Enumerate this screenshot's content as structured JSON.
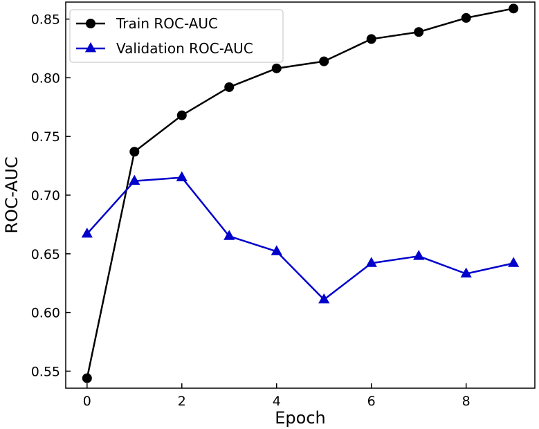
{
  "chart_data": {
    "type": "line",
    "title": "",
    "xlabel": "Epoch",
    "ylabel": "ROC-AUC",
    "x": [
      0,
      1,
      2,
      3,
      4,
      5,
      6,
      7,
      8,
      9
    ],
    "xlim": [
      -0.45,
      9.45
    ],
    "ylim": [
      0.5355,
      0.8645
    ],
    "xticks": [
      0,
      2,
      4,
      6,
      8
    ],
    "xtick_labels": [
      "0",
      "2",
      "4",
      "6",
      "8"
    ],
    "yticks": [
      0.55,
      0.6,
      0.65,
      0.7,
      0.75,
      0.8,
      0.85
    ],
    "ytick_labels": [
      "0.55",
      "0.60",
      "0.65",
      "0.70",
      "0.75",
      "0.80",
      "0.85"
    ],
    "grid": false,
    "legend_position": "top-left",
    "series": [
      {
        "name": "Train ROC-AUC",
        "color": "#000000",
        "marker": "circle",
        "values": [
          0.544,
          0.737,
          0.768,
          0.792,
          0.808,
          0.814,
          0.833,
          0.839,
          0.851,
          0.859
        ]
      },
      {
        "name": "Validation ROC-AUC",
        "color": "#0000cc",
        "marker": "triangle",
        "values": [
          0.667,
          0.712,
          0.715,
          0.665,
          0.652,
          0.611,
          0.642,
          0.648,
          0.633,
          0.642
        ]
      }
    ]
  }
}
